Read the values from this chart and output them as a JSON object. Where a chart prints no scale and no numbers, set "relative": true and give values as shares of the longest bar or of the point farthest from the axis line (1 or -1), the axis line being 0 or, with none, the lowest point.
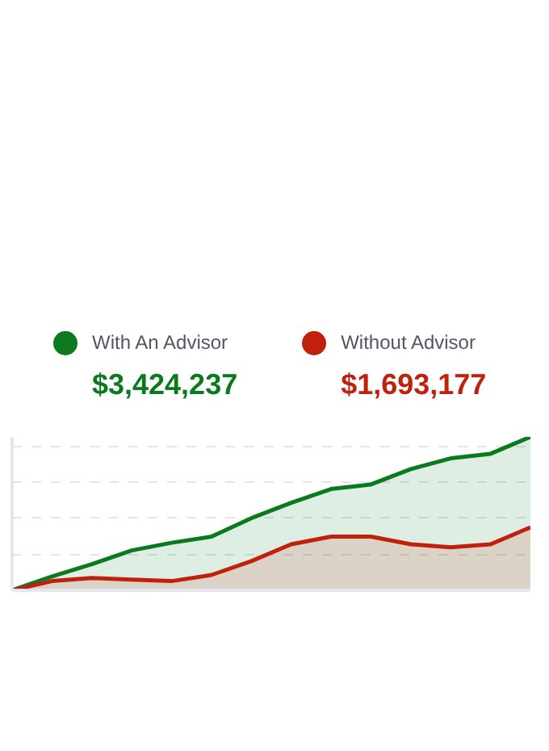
{
  "chart_data": {
    "type": "area",
    "relative": true,
    "categories": [
      null,
      null,
      null,
      null,
      null,
      null,
      null,
      null,
      null,
      null,
      null,
      null,
      null,
      null
    ],
    "series": [
      {
        "name": "With An Advisor",
        "color": "#0b7a1f",
        "values": [
          0,
          0.09,
          0.17,
          0.26,
          0.31,
          0.35,
          0.47,
          0.57,
          0.66,
          0.69,
          0.79,
          0.86,
          0.89,
          1
        ]
      },
      {
        "name": "Without Advisor",
        "color": "#c0200c",
        "values": [
          0,
          0.06,
          0.08,
          0.07,
          0.06,
          0.1,
          0.19,
          0.3,
          0.35,
          0.35,
          0.3,
          0.28,
          0.3,
          0.41
        ]
      }
    ],
    "annotations": [
      "$3,424,237",
      "$1,693,177"
    ],
    "legend": "top",
    "grid": "y"
  }
}
